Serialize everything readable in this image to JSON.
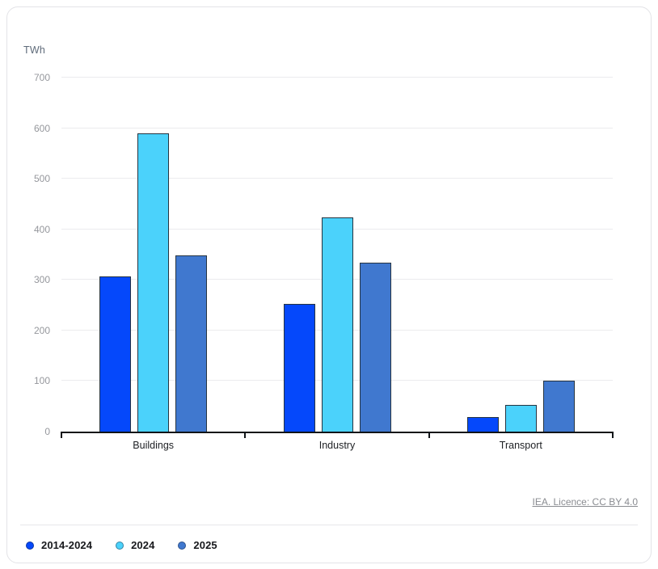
{
  "unit_label": "TWh",
  "attribution": "IEA. Licence: CC BY 4.0",
  "colors": {
    "series1": "#0548fb",
    "series2": "#4bd2fb",
    "series3": "#4078cf",
    "bar_border": "#263441",
    "axis": "#101418",
    "gridline": "#ebebee",
    "tick_text": "#95979c",
    "category_text": "#202226"
  },
  "chart_data": {
    "type": "bar",
    "title": "",
    "xlabel": "",
    "ylabel": "TWh",
    "categories": [
      "Buildings",
      "Industry",
      "Transport"
    ],
    "series": [
      {
        "name": "2014-2024",
        "color": "#0548fb",
        "values": [
          307,
          252,
          28
        ]
      },
      {
        "name": "2024",
        "color": "#4bd2fb",
        "values": [
          590,
          423,
          52
        ]
      },
      {
        "name": "2025",
        "color": "#4078cf",
        "values": [
          348,
          334,
          101
        ]
      }
    ],
    "ylim": [
      0,
      700
    ],
    "yticks": [
      0,
      100,
      200,
      300,
      400,
      500,
      600,
      700
    ],
    "grid": true,
    "legend_position": "bottom-left"
  }
}
